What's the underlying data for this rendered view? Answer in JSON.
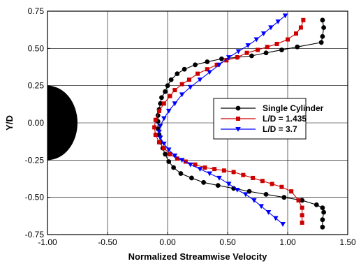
{
  "chart_data": {
    "type": "line",
    "xlabel": "Normalized Streamwise Velocity",
    "ylabel": "Y/D",
    "xlim": [
      -1.0,
      1.5
    ],
    "ylim": [
      -0.75,
      0.75
    ],
    "xticks": [
      "-1.00",
      "-0.50",
      "0.00",
      "0.50",
      "1.00",
      "1.50"
    ],
    "yticks": [
      "-0.75",
      "-0.50",
      "-0.25",
      "0.00",
      "0.25",
      "0.50",
      "0.75"
    ],
    "x_tick_values": [
      -1.0,
      -0.5,
      0.0,
      0.5,
      1.0,
      1.5
    ],
    "y_tick_values": [
      -0.75,
      -0.5,
      -0.25,
      0.0,
      0.25,
      0.5,
      0.75
    ],
    "grid": true,
    "legend_position": "right",
    "cylinder": {
      "center": [
        -1.0,
        0.0
      ],
      "radius": 0.25,
      "color": "#000000"
    },
    "series": [
      {
        "name": "Single Cylinder",
        "color": "#000000",
        "marker": "circle",
        "x": [
          1.29,
          1.3,
          1.29,
          1.28,
          1.08,
          0.95,
          0.82,
          0.7,
          0.58,
          0.45,
          0.33,
          0.23,
          0.14,
          0.08,
          0.03,
          0.0,
          -0.02,
          -0.05,
          -0.06,
          -0.07,
          -0.08,
          -0.08,
          -0.08,
          -0.07,
          -0.06,
          -0.04,
          -0.02,
          0.01,
          0.05,
          0.11,
          0.2,
          0.3,
          0.42,
          0.55,
          0.68,
          0.82,
          0.97,
          1.12,
          1.24,
          1.29,
          1.3,
          1.29,
          1.29
        ],
        "y": [
          0.69,
          0.64,
          0.58,
          0.54,
          0.51,
          0.49,
          0.47,
          0.45,
          0.44,
          0.43,
          0.41,
          0.39,
          0.36,
          0.33,
          0.29,
          0.25,
          0.21,
          0.17,
          0.13,
          0.09,
          0.05,
          0.01,
          -0.04,
          -0.08,
          -0.13,
          -0.17,
          -0.21,
          -0.26,
          -0.3,
          -0.34,
          -0.37,
          -0.4,
          -0.42,
          -0.44,
          -0.46,
          -0.48,
          -0.5,
          -0.52,
          -0.55,
          -0.57,
          -0.6,
          -0.65,
          -0.7
        ]
      },
      {
        "name": "L/D = 1.435",
        "color": "#cc0000",
        "marker": "square",
        "x": [
          1.13,
          1.11,
          1.07,
          1.0,
          0.91,
          0.83,
          0.75,
          0.66,
          0.58,
          0.49,
          0.41,
          0.33,
          0.25,
          0.18,
          0.12,
          0.06,
          0.02,
          -0.03,
          -0.07,
          -0.1,
          -0.11,
          -0.1,
          -0.07,
          -0.03,
          0.02,
          0.08,
          0.15,
          0.23,
          0.31,
          0.39,
          0.47,
          0.55,
          0.63,
          0.71,
          0.79,
          0.87,
          0.95,
          1.03,
          1.09,
          1.12,
          1.12,
          1.12
        ],
        "y": [
          0.69,
          0.64,
          0.6,
          0.56,
          0.53,
          0.51,
          0.49,
          0.47,
          0.44,
          0.42,
          0.39,
          0.36,
          0.33,
          0.29,
          0.26,
          0.22,
          0.18,
          0.13,
          0.08,
          0.02,
          -0.03,
          -0.08,
          -0.13,
          -0.17,
          -0.21,
          -0.24,
          -0.26,
          -0.28,
          -0.3,
          -0.31,
          -0.32,
          -0.33,
          -0.35,
          -0.37,
          -0.39,
          -0.41,
          -0.43,
          -0.46,
          -0.52,
          -0.57,
          -0.62,
          -0.67
        ]
      },
      {
        "name": "L/D = 3.7",
        "color": "#0000ff",
        "marker": "triangle-down",
        "x": [
          0.98,
          0.92,
          0.86,
          0.8,
          0.74,
          0.67,
          0.59,
          0.51,
          0.43,
          0.35,
          0.27,
          0.19,
          0.12,
          0.06,
          0.01,
          -0.03,
          -0.06,
          -0.07,
          -0.06,
          -0.03,
          0.01,
          0.06,
          0.12,
          0.19,
          0.27,
          0.35,
          0.43,
          0.51,
          0.58,
          0.65,
          0.72,
          0.78,
          0.84,
          0.9,
          0.96
        ],
        "y": [
          0.72,
          0.68,
          0.64,
          0.6,
          0.56,
          0.52,
          0.48,
          0.44,
          0.39,
          0.34,
          0.29,
          0.24,
          0.19,
          0.13,
          0.08,
          0.03,
          -0.02,
          -0.06,
          -0.1,
          -0.14,
          -0.18,
          -0.22,
          -0.25,
          -0.28,
          -0.31,
          -0.34,
          -0.37,
          -0.41,
          -0.45,
          -0.48,
          -0.52,
          -0.56,
          -0.6,
          -0.64,
          -0.68
        ]
      }
    ]
  }
}
